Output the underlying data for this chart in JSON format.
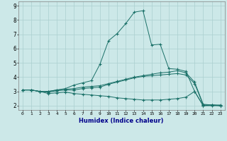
{
  "xlabel": "Humidex (Indice chaleur)",
  "bg_color": "#cce8e8",
  "grid_color": "#aacfcf",
  "line_color": "#1a7068",
  "xlim": [
    -0.5,
    23.5
  ],
  "ylim": [
    1.7,
    9.3
  ],
  "xticks": [
    0,
    1,
    2,
    3,
    4,
    5,
    6,
    7,
    8,
    9,
    10,
    11,
    12,
    13,
    14,
    15,
    16,
    17,
    18,
    19,
    20,
    21,
    22,
    23
  ],
  "yticks": [
    2,
    3,
    4,
    5,
    6,
    7,
    8,
    9
  ],
  "lines": [
    {
      "x": [
        0,
        1,
        2,
        3,
        4,
        5,
        6,
        7,
        8,
        9,
        10,
        11,
        12,
        13,
        14,
        15,
        16,
        17,
        18,
        19,
        20,
        21,
        22,
        23
      ],
      "y": [
        3.1,
        3.1,
        3.0,
        3.0,
        3.1,
        3.15,
        3.2,
        3.3,
        3.35,
        3.4,
        3.55,
        3.7,
        3.85,
        4.0,
        4.1,
        4.2,
        4.3,
        4.35,
        4.45,
        4.3,
        3.65,
        2.1,
        2.05,
        2.05
      ]
    },
    {
      "x": [
        0,
        1,
        2,
        3,
        4,
        5,
        6,
        7,
        8,
        9,
        10,
        11,
        12,
        13,
        14,
        15,
        16,
        17,
        18,
        19,
        20,
        21,
        22,
        23
      ],
      "y": [
        3.1,
        3.1,
        3.0,
        2.95,
        3.05,
        3.1,
        3.1,
        3.2,
        3.25,
        3.3,
        3.5,
        3.65,
        3.8,
        3.95,
        4.05,
        4.1,
        4.15,
        4.2,
        4.25,
        4.15,
        3.55,
        2.05,
        2.05,
        2.0
      ]
    },
    {
      "x": [
        0,
        1,
        2,
        3,
        4,
        5,
        6,
        7,
        8,
        9,
        10,
        11,
        12,
        13,
        14,
        15,
        16,
        17,
        18,
        19,
        20,
        21,
        22,
        23
      ],
      "y": [
        3.1,
        3.1,
        3.0,
        2.85,
        2.9,
        2.95,
        2.85,
        2.8,
        2.75,
        2.7,
        2.65,
        2.55,
        2.5,
        2.45,
        2.4,
        2.4,
        2.4,
        2.45,
        2.5,
        2.6,
        3.0,
        2.0,
        2.0,
        2.0
      ]
    },
    {
      "x": [
        0,
        1,
        2,
        3,
        4,
        5,
        6,
        7,
        8,
        9,
        10,
        11,
        12,
        13,
        14,
        15,
        16,
        17,
        18,
        19,
        20,
        21,
        22,
        23
      ],
      "y": [
        3.1,
        3.1,
        3.0,
        3.0,
        3.1,
        3.2,
        3.45,
        3.6,
        3.75,
        4.9,
        6.55,
        7.05,
        7.75,
        8.55,
        8.65,
        6.25,
        6.3,
        4.6,
        4.55,
        4.4,
        3.0,
        2.0,
        2.05,
        2.0
      ]
    }
  ]
}
